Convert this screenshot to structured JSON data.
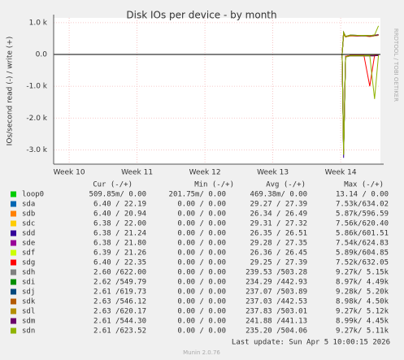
{
  "chart_data": {
    "type": "line",
    "title": "Disk IOs per device - by month",
    "y_label": "IOs/second read (-) / write (+)",
    "side_text": "RRDTOOL / TOBI OETIKER",
    "xlim": [
      0,
      33.7
    ],
    "xticks": [
      {
        "value": 1.6,
        "label": "Week 10"
      },
      {
        "value": 8.6,
        "label": "Week 11"
      },
      {
        "value": 15.6,
        "label": "Week 12"
      },
      {
        "value": 22.6,
        "label": "Week 13"
      },
      {
        "value": 29.6,
        "label": "Week 14"
      }
    ],
    "ylim": [
      -3450,
      1150
    ],
    "yticks": [
      {
        "value": 1000,
        "label": "1.0 k"
      },
      {
        "value": 0,
        "label": "0.0"
      },
      {
        "value": -1000,
        "label": "-1.0 k"
      },
      {
        "value": -2000,
        "label": "-2.0 k"
      },
      {
        "value": -3000,
        "label": "-3.0 k"
      }
    ],
    "grid": true,
    "x": [
      29.75,
      29.9,
      30.1,
      30.6,
      31.3,
      32.0,
      32.6,
      33.1,
      33.5
    ],
    "series": [
      {
        "name": "loop0",
        "color": "#00cc00",
        "read": [
          0,
          -2,
          -1,
          0,
          0,
          0,
          0,
          0,
          0
        ],
        "write": [
          0,
          1,
          0,
          0,
          0,
          0,
          0,
          0,
          0
        ]
      },
      {
        "name": "sda",
        "color": "#0066b3",
        "read": [
          0,
          -2900,
          -60,
          -30,
          -30,
          -30,
          -30,
          -30,
          -20
        ],
        "write": [
          0,
          630,
          560,
          590,
          580,
          590,
          570,
          590,
          610
        ]
      },
      {
        "name": "sdb",
        "color": "#ff8000",
        "read": [
          0,
          -2950,
          -70,
          -30,
          -30,
          -30,
          -30,
          -30,
          -20
        ],
        "write": [
          0,
          620,
          550,
          580,
          590,
          580,
          560,
          580,
          600
        ]
      },
      {
        "name": "sdc",
        "color": "#ffcc00",
        "read": [
          0,
          -3000,
          -60,
          -30,
          -30,
          -30,
          -30,
          -30,
          -20
        ],
        "write": [
          0,
          640,
          560,
          600,
          580,
          590,
          570,
          600,
          610
        ]
      },
      {
        "name": "sdd",
        "color": "#330099",
        "read": [
          0,
          -3250,
          -70,
          -30,
          -30,
          -30,
          -30,
          -30,
          -20
        ],
        "write": [
          0,
          650,
          550,
          590,
          580,
          580,
          570,
          590,
          600
        ]
      },
      {
        "name": "sde",
        "color": "#990099",
        "read": [
          0,
          -3050,
          -60,
          -30,
          -30,
          -30,
          -30,
          -30,
          -20
        ],
        "write": [
          0,
          630,
          560,
          600,
          590,
          590,
          580,
          600,
          610
        ]
      },
      {
        "name": "sdf",
        "color": "#ccff00",
        "read": [
          0,
          -2900,
          -60,
          -30,
          -30,
          -30,
          -30,
          -30,
          -20
        ],
        "write": [
          0,
          610,
          550,
          580,
          580,
          580,
          570,
          590,
          600
        ]
      },
      {
        "name": "sdg",
        "color": "#ff0000",
        "read": [
          0,
          -3100,
          -60,
          -30,
          -30,
          -30,
          -1000,
          -30,
          -20
        ],
        "write": [
          0,
          640,
          560,
          590,
          580,
          590,
          570,
          600,
          610
        ]
      },
      {
        "name": "sdh",
        "color": "#808080",
        "read": [
          0,
          -3150,
          -80,
          -40,
          -40,
          -40,
          -40,
          -40,
          -30
        ],
        "write": [
          0,
          700,
          570,
          610,
          600,
          600,
          590,
          610,
          620
        ]
      },
      {
        "name": "sdi",
        "color": "#008f00",
        "read": [
          0,
          -3100,
          -80,
          -40,
          -40,
          -40,
          -40,
          -40,
          -30
        ],
        "write": [
          0,
          690,
          570,
          600,
          600,
          600,
          590,
          600,
          620
        ]
      },
      {
        "name": "sdj",
        "color": "#00487d",
        "read": [
          0,
          -3150,
          -80,
          -40,
          -40,
          -40,
          -40,
          -40,
          -30
        ],
        "write": [
          0,
          700,
          560,
          610,
          600,
          590,
          580,
          600,
          620
        ]
      },
      {
        "name": "sdk",
        "color": "#b35a00",
        "read": [
          0,
          -3100,
          -80,
          -40,
          -40,
          -40,
          -40,
          -40,
          -30
        ],
        "write": [
          0,
          680,
          560,
          600,
          590,
          600,
          590,
          610,
          620
        ]
      },
      {
        "name": "sdl",
        "color": "#b38f00",
        "read": [
          0,
          -3150,
          -80,
          -40,
          -40,
          -40,
          -40,
          -40,
          -30
        ],
        "write": [
          0,
          690,
          570,
          600,
          600,
          600,
          590,
          610,
          620
        ]
      },
      {
        "name": "sdm",
        "color": "#6b006b",
        "read": [
          0,
          -3100,
          -80,
          -40,
          -40,
          -40,
          -40,
          -40,
          -30
        ],
        "write": [
          0,
          690,
          570,
          600,
          590,
          600,
          580,
          600,
          620
        ]
      },
      {
        "name": "sdn",
        "color": "#8fb300",
        "read": [
          0,
          -3150,
          -80,
          -40,
          -40,
          -40,
          -40,
          -1400,
          -30
        ],
        "write": [
          0,
          700,
          570,
          610,
          600,
          600,
          590,
          610,
          900
        ]
      }
    ],
    "legend_table": {
      "headers": [
        "Cur (-/+)",
        "Min (-/+)",
        "Avg (-/+)",
        "Max (-/+)"
      ],
      "rows": [
        [
          "509.85m/  0.00",
          "201.75m/  0.00",
          "469.38m/  0.00",
          "13.14 /  0.00"
        ],
        [
          "6.40 / 22.19",
          "0.00 /  0.00",
          "29.27 / 27.39",
          "7.53k/634.02"
        ],
        [
          "6.40 / 20.94",
          "0.00 /  0.00",
          "26.34 / 26.49",
          "5.87k/596.59"
        ],
        [
          "6.38 / 22.00",
          "0.00 /  0.00",
          "29.31 / 27.32",
          "7.56k/620.40"
        ],
        [
          "6.38 / 21.24",
          "0.00 /  0.00",
          "26.35 / 26.51",
          "5.86k/601.51"
        ],
        [
          "6.38 / 21.80",
          "0.00 /  0.00",
          "29.28 / 27.35",
          "7.54k/624.83"
        ],
        [
          "6.39 / 21.26",
          "0.00 /  0.00",
          "26.36 / 26.45",
          "5.89k/604.85"
        ],
        [
          "6.40 / 22.35",
          "0.00 /  0.00",
          "29.25 / 27.39",
          "7.52k/632.05"
        ],
        [
          "2.60 /622.00",
          "0.00 /  0.00",
          "239.53 /503.28",
          "9.27k/  5.15k"
        ],
        [
          "2.62 /549.79",
          "0.00 /  0.00",
          "234.29 /442.93",
          "8.97k/  4.49k"
        ],
        [
          "2.61 /619.73",
          "0.00 /  0.00",
          "237.07 /503.89",
          "9.28k/  5.20k"
        ],
        [
          "2.63 /546.12",
          "0.00 /  0.00",
          "237.03 /442.53",
          "8.98k/  4.50k"
        ],
        [
          "2.63 /620.17",
          "0.00 /  0.00",
          "237.83 /503.01",
          "9.27k/  5.12k"
        ],
        [
          "2.61 /544.30",
          "0.00 /  0.00",
          "241.88 /441.13",
          "8.99k/  4.45k"
        ],
        [
          "2.61 /623.52",
          "0.00 /  0.00",
          "235.20 /504.06",
          "9.27k/  5.11k"
        ]
      ]
    },
    "last_update": "Last update: Sun Apr  5 10:00:15 2026",
    "footer": "Munin 2.0.76"
  }
}
